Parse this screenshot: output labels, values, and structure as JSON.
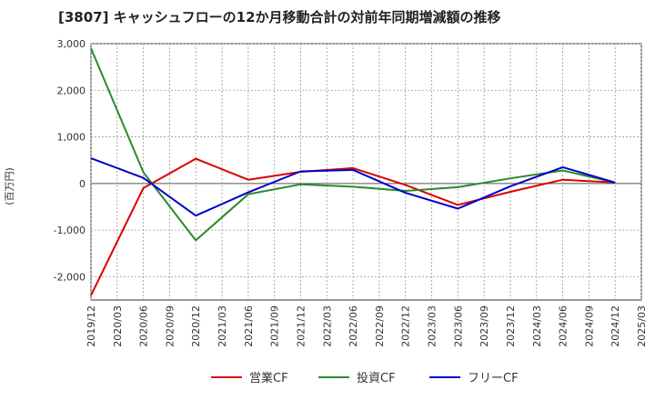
{
  "chart_data": {
    "type": "line",
    "title": "[3807]  キャッシュフローの12か月移動合計の対前年同期増減額の推移",
    "ylabel": "(百万円)",
    "xlabel": "",
    "ylim": [
      -2500,
      3000
    ],
    "yticks": [
      3000,
      2000,
      1000,
      0,
      -1000,
      -2000
    ],
    "ytick_labels": [
      "3,000",
      "2,000",
      "1,000",
      "0",
      "-1,000",
      "-2,000"
    ],
    "x_ticks": [
      "2019/12",
      "2020/03",
      "2020/06",
      "2020/09",
      "2020/12",
      "2021/03",
      "2021/06",
      "2021/09",
      "2021/12",
      "2022/03",
      "2022/06",
      "2022/09",
      "2022/12",
      "2023/03",
      "2023/06",
      "2023/09",
      "2023/12",
      "2024/03",
      "2024/06",
      "2024/09",
      "2024/12",
      "2025/03"
    ],
    "grid": true,
    "legend_position": "bottom",
    "series": [
      {
        "name": "営業CF",
        "color": "#dd0000",
        "x": [
          "2019/12",
          "2020/06",
          "2020/12",
          "2021/06",
          "2021/12",
          "2022/06",
          "2022/12",
          "2023/06",
          "2023/12",
          "2024/06",
          "2024/12"
        ],
        "values": [
          -2400,
          -100,
          530,
          80,
          250,
          330,
          -30,
          -460,
          -180,
          80,
          20
        ]
      },
      {
        "name": "投資CF",
        "color": "#2a8a2a",
        "x": [
          "2019/12",
          "2020/06",
          "2020/12",
          "2021/06",
          "2021/12",
          "2022/06",
          "2022/12",
          "2023/06",
          "2023/12",
          "2024/06",
          "2024/12"
        ],
        "values": [
          2900,
          240,
          -1220,
          -230,
          -20,
          -70,
          -160,
          -80,
          110,
          280,
          20
        ]
      },
      {
        "name": "フリーCF",
        "color": "#0000cc",
        "x": [
          "2019/12",
          "2020/06",
          "2020/12",
          "2021/06",
          "2021/12",
          "2022/06",
          "2022/12",
          "2023/06",
          "2023/12",
          "2024/06",
          "2024/12"
        ],
        "values": [
          540,
          120,
          -690,
          -190,
          260,
          290,
          -200,
          -540,
          -60,
          350,
          20
        ]
      }
    ]
  }
}
